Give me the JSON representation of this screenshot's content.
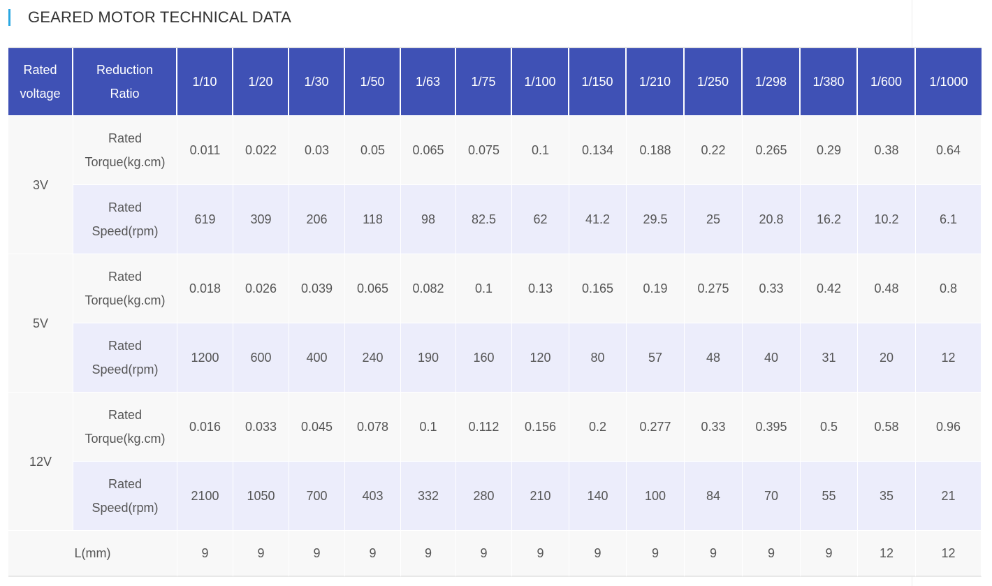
{
  "title": "GEARED MOTOR TECHNICAL DATA",
  "header": {
    "voltage_label": "Rated voltage",
    "ratio_label": "Reduction Ratio",
    "ratios": [
      "1/10",
      "1/20",
      "1/30",
      "1/50",
      "1/63",
      "1/75",
      "1/100",
      "1/150",
      "1/210",
      "1/250",
      "1/298",
      "1/380",
      "1/600",
      "1/1000"
    ]
  },
  "groups": [
    {
      "voltage": "3V",
      "torque_label": "Rated Torque(kg.cm)",
      "torque": [
        "0.011",
        "0.022",
        "0.03",
        "0.05",
        "0.065",
        "0.075",
        "0.1",
        "0.134",
        "0.188",
        "0.22",
        "0.265",
        "0.29",
        "0.38",
        "0.64"
      ],
      "speed_label": "Rated Speed(rpm)",
      "speed": [
        "619",
        "309",
        "206",
        "118",
        "98",
        "82.5",
        "62",
        "41.2",
        "29.5",
        "25",
        "20.8",
        "16.2",
        "10.2",
        "6.1"
      ]
    },
    {
      "voltage": "5V",
      "torque_label": "Rated Torque(kg.cm)",
      "torque": [
        "0.018",
        "0.026",
        "0.039",
        "0.065",
        "0.082",
        "0.1",
        "0.13",
        "0.165",
        "0.19",
        "0.275",
        "0.33",
        "0.42",
        "0.48",
        "0.8"
      ],
      "speed_label": "Rated Speed(rpm)",
      "speed": [
        "1200",
        "600",
        "400",
        "240",
        "190",
        "160",
        "120",
        "80",
        "57",
        "48",
        "40",
        "31",
        "20",
        "12"
      ]
    },
    {
      "voltage": "12V",
      "torque_label": "Rated Torque(kg.cm)",
      "torque": [
        "0.016",
        "0.033",
        "0.045",
        "0.078",
        "0.1",
        "0.112",
        "0.156",
        "0.2",
        "0.277",
        "0.33",
        "0.395",
        "0.5",
        "0.58",
        "0.96"
      ],
      "speed_label": "Rated Speed(rpm)",
      "speed": [
        "2100",
        "1050",
        "700",
        "403",
        "332",
        "280",
        "210",
        "140",
        "100",
        "84",
        "70",
        "55",
        "35",
        "21"
      ]
    }
  ],
  "length": {
    "label": "L(mm)",
    "values": [
      "9",
      "9",
      "9",
      "9",
      "9",
      "9",
      "9",
      "9",
      "9",
      "9",
      "9",
      "9",
      "12",
      "12"
    ]
  }
}
